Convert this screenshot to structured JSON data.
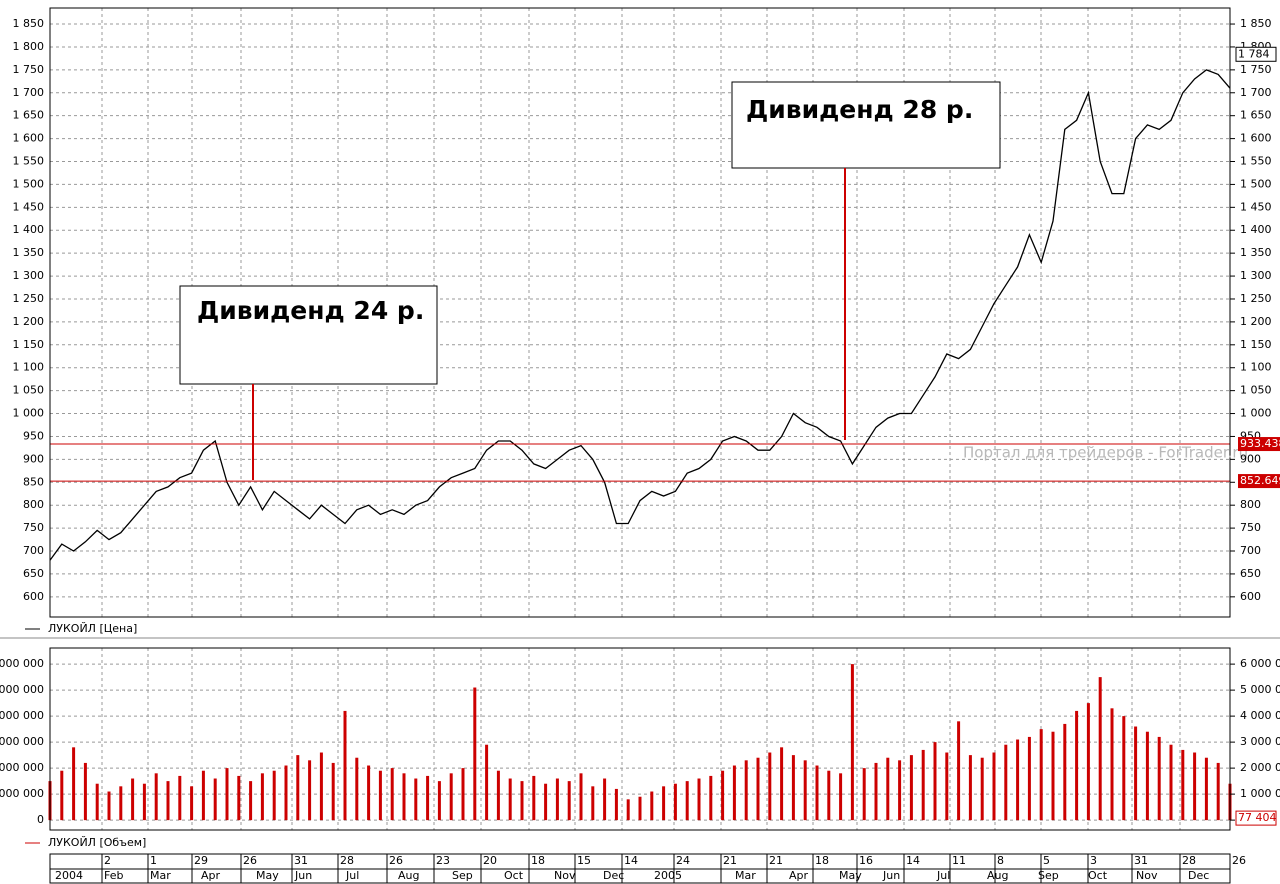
{
  "chart_data": [
    {
      "type": "line",
      "name": "ЛУКОЙЛ [Цена]",
      "color": "#000000",
      "ylim": [
        556,
        1885
      ],
      "yticks": [
        600,
        650,
        700,
        750,
        800,
        850,
        900,
        950,
        {
          "value": 1000,
          "label": "1 000"
        },
        {
          "value": 1050,
          "label": "1 050"
        },
        {
          "value": 1100,
          "label": "1 100"
        },
        {
          "value": 1150,
          "label": "1 150"
        },
        {
          "value": 1200,
          "label": "1 200"
        },
        {
          "value": 1250,
          "label": "1 250"
        },
        {
          "value": 1300,
          "label": "1 300"
        },
        {
          "value": 1350,
          "label": "1 350"
        },
        {
          "value": 1400,
          "label": "1 400"
        },
        {
          "value": 1450,
          "label": "1 450"
        },
        {
          "value": 1500,
          "label": "1 500"
        },
        {
          "value": 1550,
          "label": "1 550"
        },
        {
          "value": 1600,
          "label": "1 600"
        },
        {
          "value": 1650,
          "label": "1 650"
        },
        {
          "value": 1700,
          "label": "1 700"
        },
        {
          "value": 1750,
          "label": "1 750"
        },
        {
          "value": 1800,
          "label": "1 800"
        },
        {
          "value": 1850,
          "label": "1 850"
        }
      ],
      "grid": true,
      "series": [
        {
          "name": "ЛУКОЙЛ [Цена]",
          "color": "#000000",
          "values": [
            680,
            715,
            700,
            720,
            745,
            725,
            740,
            770,
            800,
            830,
            840,
            860,
            870,
            920,
            940,
            850,
            800,
            840,
            790,
            830,
            810,
            790,
            770,
            800,
            780,
            760,
            790,
            800,
            780,
            790,
            780,
            800,
            810,
            840,
            860,
            870,
            880,
            920,
            940,
            940,
            920,
            890,
            880,
            900,
            920,
            930,
            900,
            850,
            760,
            760,
            810,
            830,
            820,
            830,
            870,
            880,
            900,
            940,
            950,
            940,
            920,
            920,
            950,
            1000,
            980,
            970,
            950,
            940,
            890,
            930,
            970,
            990,
            1000,
            1000,
            1040,
            1080,
            1130,
            1120,
            1140,
            1190,
            1240,
            1280,
            1320,
            1390,
            1330,
            1420,
            1620,
            1640,
            1700,
            1550,
            1480,
            1480,
            1600,
            1630,
            1620,
            1640,
            1700,
            1730,
            1750,
            1740,
            1710
          ]
        }
      ],
      "levels": [
        {
          "value": 933.438,
          "label": "933.438",
          "color": "#cc0000"
        },
        {
          "value": 852.649,
          "label": "852.649",
          "color": "#cc0000"
        }
      ],
      "last_marker": {
        "value": 1784,
        "label": "1 784"
      },
      "annotations": [
        "Дивиденд 24 р.",
        "Дивиденд 28 р."
      ],
      "watermark": "Портал для трейдеров - ForTrader.ru"
    },
    {
      "type": "bar",
      "name": "ЛУКОЙЛ [Объем]",
      "color": "#cc0000",
      "ylim": [
        -380000,
        6620000
      ],
      "yticks": [
        0,
        {
          "value": 1000000,
          "label": "1 000 000"
        },
        {
          "value": 2000000,
          "label": "2 000 000"
        },
        {
          "value": 3000000,
          "label": "3 000 000"
        },
        {
          "value": 4000000,
          "label": "4 000 000"
        },
        {
          "value": 5000000,
          "label": "5 000 000"
        },
        {
          "value": 6000000,
          "label": "6 000 000"
        }
      ],
      "grid": true,
      "series": [
        {
          "name": "ЛУКОЙЛ [Объем]",
          "color": "#cc0000",
          "values": [
            1500000,
            1900000,
            2800000,
            2200000,
            1400000,
            1100000,
            1300000,
            1600000,
            1400000,
            1800000,
            1500000,
            1700000,
            1300000,
            1900000,
            1600000,
            2000000,
            1700000,
            1500000,
            1800000,
            1900000,
            2100000,
            2500000,
            2300000,
            2600000,
            2200000,
            4200000,
            2400000,
            2100000,
            1900000,
            2000000,
            1800000,
            1600000,
            1700000,
            1500000,
            1800000,
            2000000,
            5100000,
            2900000,
            1900000,
            1600000,
            1500000,
            1700000,
            1400000,
            1600000,
            1500000,
            1800000,
            1300000,
            1600000,
            1200000,
            800000,
            900000,
            1100000,
            1300000,
            1400000,
            1500000,
            1600000,
            1700000,
            1900000,
            2100000,
            2300000,
            2400000,
            2600000,
            2800000,
            2500000,
            2300000,
            2100000,
            1900000,
            1800000,
            6000000,
            2000000,
            2200000,
            2400000,
            2300000,
            2500000,
            2700000,
            3000000,
            2600000,
            3800000,
            2500000,
            2400000,
            2600000,
            2900000,
            3100000,
            3200000,
            3500000,
            3400000,
            3700000,
            4200000,
            4500000,
            5500000,
            4300000,
            4000000,
            3600000,
            3400000,
            3200000,
            2900000,
            2700000,
            2600000,
            2400000,
            2200000,
            1400000
          ]
        }
      ],
      "last_marker": {
        "value": 77404,
        "label": "77 404"
      },
      "xaxis_days": [
        "2",
        "1",
        "29",
        "26",
        "31",
        "28",
        "26",
        "23",
        "20",
        "18",
        "15",
        "14",
        "24",
        "21",
        "21",
        "18",
        "16",
        "14",
        "11",
        "8",
        "5",
        "3",
        "31",
        "28",
        "26"
      ],
      "xaxis_months": [
        "2004",
        "Feb",
        "Mar",
        "Apr",
        "May",
        "Jun",
        "Jul",
        "Aug",
        "Sep",
        "Oct",
        "Nov",
        "Dec",
        "2005",
        "Mar",
        "Apr",
        "May",
        "Jun",
        "Jul",
        "Aug",
        "Sep",
        "Oct",
        "Nov",
        "Dec"
      ]
    }
  ]
}
